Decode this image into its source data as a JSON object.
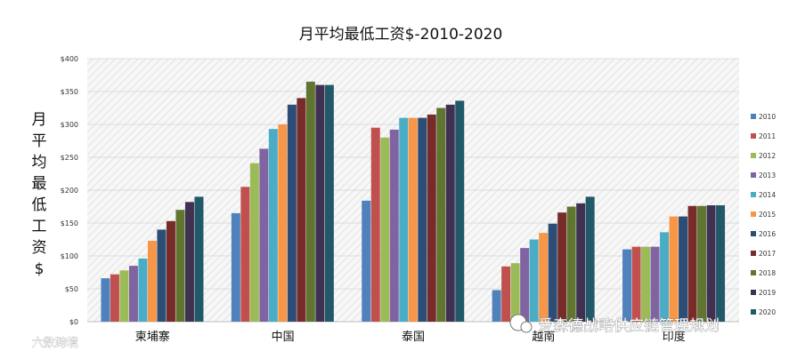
{
  "chart_data": {
    "type": "bar",
    "title": "月平均最低工资$-2010-2020",
    "ylabel": "月平均最低工资$",
    "xlabel": "",
    "ylim": [
      0,
      400
    ],
    "ytick_values": [
      0,
      50,
      100,
      150,
      200,
      250,
      300,
      350,
      400
    ],
    "ytick_labels": [
      "$0",
      "$50",
      "$100",
      "$150",
      "$200",
      "$250",
      "$300",
      "$350",
      "$400"
    ],
    "grid": true,
    "legend_position": "right",
    "categories": [
      "柬埔寨",
      "中国",
      "泰国",
      "越南",
      "印度"
    ],
    "series": [
      {
        "name": "2010",
        "color": "#4f81bd",
        "values": [
          66,
          165,
          184,
          48,
          110
        ]
      },
      {
        "name": "2011",
        "color": "#c0504d",
        "values": [
          72,
          205,
          295,
          84,
          114
        ]
      },
      {
        "name": "2012",
        "color": "#9bbb59",
        "values": [
          78,
          241,
          280,
          89,
          114
        ]
      },
      {
        "name": "2013",
        "color": "#8064a2",
        "values": [
          85,
          263,
          292,
          112,
          114
        ]
      },
      {
        "name": "2014",
        "color": "#4bacc6",
        "values": [
          96,
          293,
          310,
          125,
          136
        ]
      },
      {
        "name": "2015",
        "color": "#f79646",
        "values": [
          123,
          300,
          310,
          135,
          160
        ]
      },
      {
        "name": "2016",
        "color": "#2c4d75",
        "values": [
          140,
          330,
          310,
          149,
          160
        ]
      },
      {
        "name": "2017",
        "color": "#772c2a",
        "values": [
          153,
          340,
          315,
          166,
          176
        ]
      },
      {
        "name": "2018",
        "color": "#5f7530",
        "values": [
          170,
          365,
          325,
          175,
          176
        ]
      },
      {
        "name": "2019",
        "color": "#403152",
        "values": [
          182,
          360,
          330,
          180,
          177
        ]
      },
      {
        "name": "2020",
        "color": "#215968",
        "values": [
          190,
          360,
          336,
          190,
          177
        ]
      }
    ]
  },
  "watermark": {
    "right_text": "爱森德战略供应链管理规划",
    "left_text": "六数跨境"
  }
}
